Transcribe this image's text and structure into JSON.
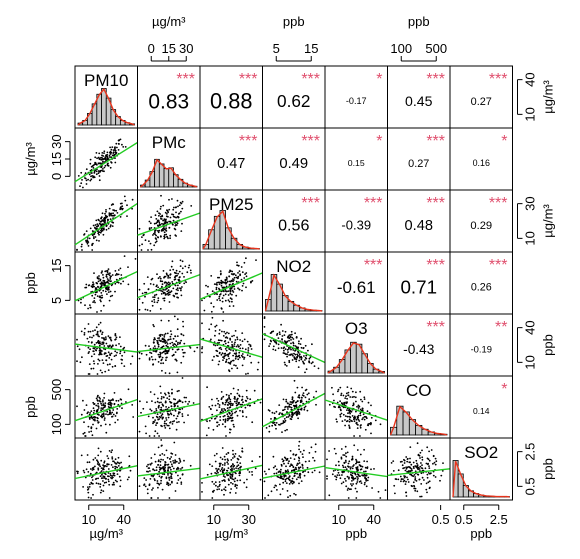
{
  "chart_data": {
    "type": "scatter-matrix",
    "variables": [
      {
        "name": "PM10",
        "unit": "µg/m³"
      },
      {
        "name": "PMc",
        "unit": "µg/m³"
      },
      {
        "name": "PM25",
        "unit": "µg/m³"
      },
      {
        "name": "NO2",
        "unit": "ppb"
      },
      {
        "name": "O3",
        "unit": "ppb"
      },
      {
        "name": "CO",
        "unit": "ppb"
      },
      {
        "name": "SO2",
        "unit": "ppb"
      }
    ],
    "axes": {
      "top": [
        {
          "col": 1,
          "ticks": [
            "0",
            "15",
            "30"
          ],
          "unit": "µg/m³"
        },
        {
          "col": 3,
          "ticks": [
            "5",
            "15"
          ],
          "unit": "ppb"
        },
        {
          "col": 5,
          "ticks": [
            "100",
            "500"
          ],
          "unit": "ppb"
        }
      ],
      "bottom": [
        {
          "col": 0,
          "ticks": [
            "10",
            "40"
          ],
          "unit": "µg/m³"
        },
        {
          "col": 2,
          "ticks": [
            "10",
            "30"
          ],
          "unit": "µg/m³"
        },
        {
          "col": 4,
          "ticks": [
            "10",
            "40"
          ],
          "unit": "ppb"
        },
        {
          "col": 6,
          "ticks": [
            "0.5",
            "2.5"
          ],
          "unit": "ppb"
        }
      ],
      "left": [
        {
          "row": 1,
          "ticks": [
            "0",
            "15",
            "30"
          ],
          "unit": "µg/m³"
        },
        {
          "row": 3,
          "ticks": [
            "5",
            "15"
          ],
          "unit": "ppb"
        },
        {
          "row": 5,
          "ticks": [
            "100",
            "500"
          ],
          "unit": "ppb"
        }
      ],
      "right": [
        {
          "row": 0,
          "ticks": [
            "10",
            "40"
          ],
          "unit": "µg/m³"
        },
        {
          "row": 2,
          "ticks": [
            "10",
            "30"
          ],
          "unit": "µg/m³"
        },
        {
          "row": 4,
          "ticks": [
            "10",
            "40"
          ],
          "unit": "ppb"
        },
        {
          "row": 6,
          "ticks": [
            "0.5",
            "2.5"
          ],
          "unit": "ppb"
        }
      ]
    },
    "bottom_tick_extra": {
      "col": 5,
      "ticks": [
        "0.5"
      ]
    },
    "correlations": [
      {
        "row": 0,
        "col": 1,
        "r": "0.83",
        "stars": "***"
      },
      {
        "row": 0,
        "col": 2,
        "r": "0.88",
        "stars": "***"
      },
      {
        "row": 0,
        "col": 3,
        "r": "0.62",
        "stars": "***"
      },
      {
        "row": 0,
        "col": 4,
        "r": "-0.17",
        "stars": "*"
      },
      {
        "row": 0,
        "col": 5,
        "r": "0.45",
        "stars": "***"
      },
      {
        "row": 0,
        "col": 6,
        "r": "0.27",
        "stars": "***"
      },
      {
        "row": 1,
        "col": 2,
        "r": "0.47",
        "stars": "***"
      },
      {
        "row": 1,
        "col": 3,
        "r": "0.49",
        "stars": "***"
      },
      {
        "row": 1,
        "col": 4,
        "r": "0.15",
        "stars": "*"
      },
      {
        "row": 1,
        "col": 5,
        "r": "0.27",
        "stars": "***"
      },
      {
        "row": 1,
        "col": 6,
        "r": "0.16",
        "stars": "*"
      },
      {
        "row": 2,
        "col": 3,
        "r": "0.56",
        "stars": "***"
      },
      {
        "row": 2,
        "col": 4,
        "r": "-0.39",
        "stars": "***"
      },
      {
        "row": 2,
        "col": 5,
        "r": "0.48",
        "stars": "***"
      },
      {
        "row": 2,
        "col": 6,
        "r": "0.29",
        "stars": "***"
      },
      {
        "row": 3,
        "col": 4,
        "r": "-0.61",
        "stars": "***"
      },
      {
        "row": 3,
        "col": 5,
        "r": "0.71",
        "stars": "***"
      },
      {
        "row": 3,
        "col": 6,
        "r": "0.26",
        "stars": "***"
      },
      {
        "row": 4,
        "col": 5,
        "r": "-0.43",
        "stars": "***"
      },
      {
        "row": 4,
        "col": 6,
        "r": "-0.19",
        "stars": "**"
      },
      {
        "row": 5,
        "col": 6,
        "r": "0.14",
        "stars": "*"
      }
    ],
    "colors": {
      "points": "#000000",
      "fit": "#22cc22",
      "density": "#e8341c",
      "hist": "#c8c8c8",
      "stars": "#e0506e"
    }
  }
}
